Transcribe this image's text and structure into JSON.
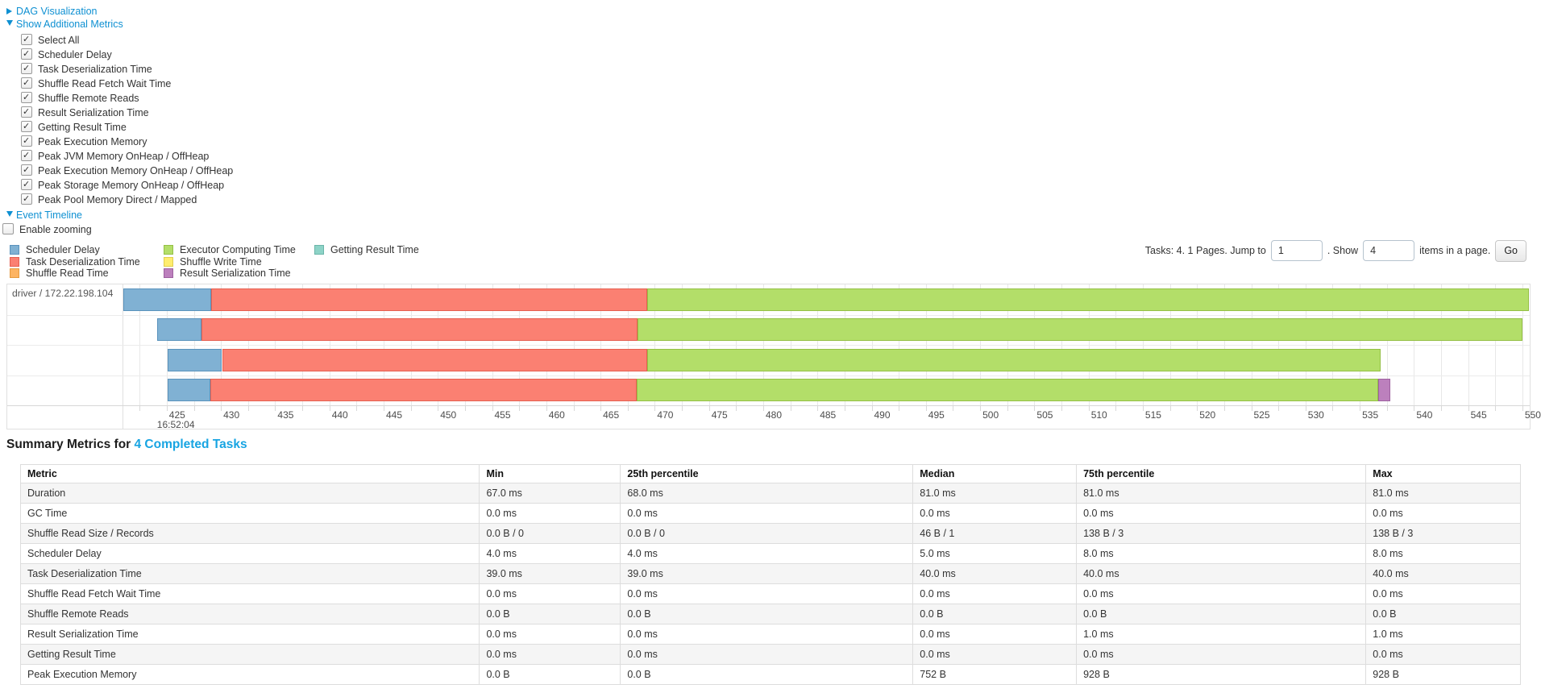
{
  "sections": {
    "dag_label": "DAG Visualization",
    "metrics_label": "Show Additional Metrics",
    "timeline_label": "Event Timeline"
  },
  "metric_options": [
    "Select All",
    "Scheduler Delay",
    "Task Deserialization Time",
    "Shuffle Read Fetch Wait Time",
    "Shuffle Remote Reads",
    "Result Serialization Time",
    "Getting Result Time",
    "Peak Execution Memory",
    "Peak JVM Memory OnHeap / OffHeap",
    "Peak Execution Memory OnHeap / OffHeap",
    "Peak Storage Memory OnHeap / OffHeap",
    "Peak Pool Memory Direct / Mapped"
  ],
  "enable_zooming": {
    "label": "Enable zooming",
    "checked": false
  },
  "legend": {
    "columns": [
      [
        {
          "label": "Scheduler Delay",
          "color": "#80B1D3",
          "border": "#5a93bd"
        },
        {
          "label": "Task Deserialization Time",
          "color": "#FB8072",
          "border": "#e55f50"
        },
        {
          "label": "Shuffle Read Time",
          "color": "#FDB462",
          "border": "#e59b40"
        }
      ],
      [
        {
          "label": "Executor Computing Time",
          "color": "#B3DE69",
          "border": "#94c045"
        },
        {
          "label": "Shuffle Write Time",
          "color": "#FFED6F",
          "border": "#e0ce4e"
        },
        {
          "label": "Result Serialization Time",
          "color": "#BC80BD",
          "border": "#9e61a0"
        }
      ],
      [
        {
          "label": "Getting Result Time",
          "color": "#8DD3C7",
          "border": "#6bb5a9"
        }
      ]
    ]
  },
  "pagination": {
    "prefix": "Tasks: 4. 1 Pages. Jump to",
    "jump_value": "1",
    "mid": ". Show",
    "show_value": "4",
    "suffix": "items in a page.",
    "go_label": "Go"
  },
  "chart_data": {
    "type": "timeline",
    "group_label": "driver / 172.22.198.104",
    "axis": {
      "min": 421.0,
      "max": 550.6,
      "tick_start": 425,
      "tick_end": 550,
      "tick_step": 5,
      "minor_step": 2.5,
      "unit": "ms after base time",
      "base_time": "16:52:04"
    },
    "series_colors": {
      "scheduler_delay": {
        "fill": "#80B1D3",
        "border": "#5a93bd"
      },
      "task_deserialization": {
        "fill": "#FB8072",
        "border": "#e55f50"
      },
      "executor_computing": {
        "fill": "#B3DE69",
        "border": "#94c045"
      },
      "result_serialization": {
        "fill": "#BC80BD",
        "border": "#9e61a0"
      }
    },
    "tasks": [
      {
        "segments": [
          {
            "name": "scheduler_delay",
            "start": 421.0,
            "end": 429.1
          },
          {
            "name": "task_deserialization",
            "start": 429.1,
            "end": 469.3
          },
          {
            "name": "executor_computing",
            "start": 469.3,
            "end": 550.6
          }
        ]
      },
      {
        "segments": [
          {
            "name": "scheduler_delay",
            "start": 424.1,
            "end": 428.2
          },
          {
            "name": "task_deserialization",
            "start": 428.2,
            "end": 468.4
          },
          {
            "name": "executor_computing",
            "start": 468.4,
            "end": 550.0
          }
        ]
      },
      {
        "segments": [
          {
            "name": "scheduler_delay",
            "start": 425.1,
            "end": 430.1
          },
          {
            "name": "task_deserialization",
            "start": 430.1,
            "end": 469.3
          },
          {
            "name": "executor_computing",
            "start": 469.3,
            "end": 536.9
          }
        ]
      },
      {
        "segments": [
          {
            "name": "scheduler_delay",
            "start": 425.1,
            "end": 429.0
          },
          {
            "name": "task_deserialization",
            "start": 429.0,
            "end": 468.3
          },
          {
            "name": "executor_computing",
            "start": 468.3,
            "end": 536.7
          },
          {
            "name": "result_serialization",
            "start": 536.7,
            "end": 537.8
          }
        ]
      }
    ]
  },
  "summary": {
    "title_prefix": "Summary Metrics for ",
    "title_link": "4 Completed Tasks",
    "headers": [
      "Metric",
      "Min",
      "25th percentile",
      "Median",
      "75th percentile",
      "Max"
    ],
    "col_widths": [
      "30.6%",
      "9.4%",
      "19.5%",
      "10.9%",
      "19.3%",
      "10.3%"
    ],
    "rows": [
      [
        "Duration",
        "67.0 ms",
        "68.0 ms",
        "81.0 ms",
        "81.0 ms",
        "81.0 ms"
      ],
      [
        "GC Time",
        "0.0 ms",
        "0.0 ms",
        "0.0 ms",
        "0.0 ms",
        "0.0 ms"
      ],
      [
        "Shuffle Read Size / Records",
        "0.0 B / 0",
        "0.0 B / 0",
        "46 B / 1",
        "138 B / 3",
        "138 B / 3"
      ],
      [
        "Scheduler Delay",
        "4.0 ms",
        "4.0 ms",
        "5.0 ms",
        "8.0 ms",
        "8.0 ms"
      ],
      [
        "Task Deserialization Time",
        "39.0 ms",
        "39.0 ms",
        "40.0 ms",
        "40.0 ms",
        "40.0 ms"
      ],
      [
        "Shuffle Read Fetch Wait Time",
        "0.0 ms",
        "0.0 ms",
        "0.0 ms",
        "0.0 ms",
        "0.0 ms"
      ],
      [
        "Shuffle Remote Reads",
        "0.0 B",
        "0.0 B",
        "0.0 B",
        "0.0 B",
        "0.0 B"
      ],
      [
        "Result Serialization Time",
        "0.0 ms",
        "0.0 ms",
        "0.0 ms",
        "1.0 ms",
        "1.0 ms"
      ],
      [
        "Getting Result Time",
        "0.0 ms",
        "0.0 ms",
        "0.0 ms",
        "0.0 ms",
        "0.0 ms"
      ],
      [
        "Peak Execution Memory",
        "0.0 B",
        "0.0 B",
        "752 B",
        "928 B",
        "928 B"
      ]
    ]
  }
}
